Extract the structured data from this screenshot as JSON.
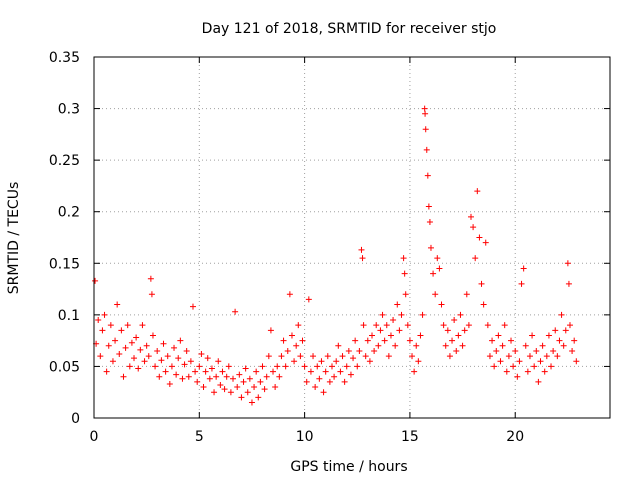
{
  "chart_data": {
    "type": "scatter",
    "title": "Day 121 of 2018, SRMTID for receiver stjo",
    "xlabel": "GPS time / hours",
    "ylabel": "SRMTID / TECUs",
    "xlim": [
      0,
      24.5
    ],
    "ylim": [
      0,
      0.35
    ],
    "x_ticks": [
      0,
      5,
      10,
      15,
      20
    ],
    "x_tick_labels": [
      "0",
      "5",
      "10",
      "15",
      "20"
    ],
    "y_ticks": [
      0,
      0.05,
      0.1,
      0.15,
      0.2,
      0.25,
      0.3,
      0.35
    ],
    "y_tick_labels": [
      "0",
      "0.05",
      "0.1",
      "0.15",
      "0.2",
      "0.25",
      "0.3",
      "0.35"
    ],
    "grid": true,
    "marker": "+",
    "marker_color": "#ff0000",
    "series": [
      {
        "name": "SRMTID",
        "points": [
          [
            0.05,
            0.133
          ],
          [
            0.1,
            0.072
          ],
          [
            0.2,
            0.095
          ],
          [
            0.3,
            0.06
          ],
          [
            0.4,
            0.085
          ],
          [
            0.5,
            0.1
          ],
          [
            0.6,
            0.045
          ],
          [
            0.7,
            0.07
          ],
          [
            0.8,
            0.09
          ],
          [
            0.9,
            0.055
          ],
          [
            1.0,
            0.075
          ],
          [
            1.1,
            0.11
          ],
          [
            1.2,
            0.062
          ],
          [
            1.3,
            0.085
          ],
          [
            1.4,
            0.04
          ],
          [
            1.5,
            0.068
          ],
          [
            1.6,
            0.09
          ],
          [
            1.7,
            0.05
          ],
          [
            1.8,
            0.073
          ],
          [
            1.9,
            0.058
          ],
          [
            2.0,
            0.078
          ],
          [
            2.1,
            0.048
          ],
          [
            2.2,
            0.066
          ],
          [
            2.3,
            0.09
          ],
          [
            2.4,
            0.055
          ],
          [
            2.5,
            0.07
          ],
          [
            2.6,
            0.06
          ],
          [
            2.7,
            0.135
          ],
          [
            2.75,
            0.12
          ],
          [
            2.8,
            0.08
          ],
          [
            2.9,
            0.05
          ],
          [
            3.0,
            0.065
          ],
          [
            3.1,
            0.04
          ],
          [
            3.2,
            0.056
          ],
          [
            3.3,
            0.072
          ],
          [
            3.4,
            0.045
          ],
          [
            3.5,
            0.06
          ],
          [
            3.6,
            0.033
          ],
          [
            3.7,
            0.05
          ],
          [
            3.8,
            0.068
          ],
          [
            3.9,
            0.042
          ],
          [
            4.0,
            0.058
          ],
          [
            4.1,
            0.075
          ],
          [
            4.2,
            0.038
          ],
          [
            4.3,
            0.052
          ],
          [
            4.4,
            0.065
          ],
          [
            4.5,
            0.04
          ],
          [
            4.6,
            0.055
          ],
          [
            4.7,
            0.108
          ],
          [
            4.8,
            0.045
          ],
          [
            4.9,
            0.035
          ],
          [
            5.0,
            0.05
          ],
          [
            5.1,
            0.062
          ],
          [
            5.2,
            0.03
          ],
          [
            5.3,
            0.045
          ],
          [
            5.4,
            0.058
          ],
          [
            5.5,
            0.038
          ],
          [
            5.6,
            0.048
          ],
          [
            5.7,
            0.025
          ],
          [
            5.8,
            0.04
          ],
          [
            5.9,
            0.055
          ],
          [
            6.0,
            0.032
          ],
          [
            6.1,
            0.045
          ],
          [
            6.2,
            0.028
          ],
          [
            6.3,
            0.04
          ],
          [
            6.4,
            0.05
          ],
          [
            6.5,
            0.025
          ],
          [
            6.6,
            0.038
          ],
          [
            6.7,
            0.103
          ],
          [
            6.8,
            0.03
          ],
          [
            6.9,
            0.042
          ],
          [
            7.0,
            0.02
          ],
          [
            7.1,
            0.035
          ],
          [
            7.2,
            0.048
          ],
          [
            7.3,
            0.025
          ],
          [
            7.4,
            0.038
          ],
          [
            7.5,
            0.015
          ],
          [
            7.6,
            0.03
          ],
          [
            7.7,
            0.045
          ],
          [
            7.8,
            0.02
          ],
          [
            7.9,
            0.035
          ],
          [
            8.0,
            0.05
          ],
          [
            8.1,
            0.028
          ],
          [
            8.2,
            0.04
          ],
          [
            8.3,
            0.06
          ],
          [
            8.4,
            0.085
          ],
          [
            8.5,
            0.045
          ],
          [
            8.6,
            0.03
          ],
          [
            8.7,
            0.05
          ],
          [
            8.8,
            0.04
          ],
          [
            8.9,
            0.06
          ],
          [
            9.0,
            0.075
          ],
          [
            9.1,
            0.05
          ],
          [
            9.2,
            0.065
          ],
          [
            9.3,
            0.12
          ],
          [
            9.4,
            0.08
          ],
          [
            9.5,
            0.055
          ],
          [
            9.6,
            0.07
          ],
          [
            9.7,
            0.09
          ],
          [
            9.8,
            0.06
          ],
          [
            9.9,
            0.075
          ],
          [
            10.0,
            0.05
          ],
          [
            10.1,
            0.035
          ],
          [
            10.2,
            0.115
          ],
          [
            10.3,
            0.045
          ],
          [
            10.4,
            0.06
          ],
          [
            10.5,
            0.03
          ],
          [
            10.6,
            0.05
          ],
          [
            10.7,
            0.038
          ],
          [
            10.8,
            0.055
          ],
          [
            10.9,
            0.025
          ],
          [
            11.0,
            0.045
          ],
          [
            11.1,
            0.06
          ],
          [
            11.2,
            0.035
          ],
          [
            11.3,
            0.05
          ],
          [
            11.4,
            0.04
          ],
          [
            11.5,
            0.055
          ],
          [
            11.6,
            0.07
          ],
          [
            11.7,
            0.045
          ],
          [
            11.8,
            0.06
          ],
          [
            11.9,
            0.035
          ],
          [
            12.0,
            0.05
          ],
          [
            12.1,
            0.065
          ],
          [
            12.2,
            0.042
          ],
          [
            12.3,
            0.058
          ],
          [
            12.4,
            0.075
          ],
          [
            12.5,
            0.05
          ],
          [
            12.6,
            0.065
          ],
          [
            12.7,
            0.163
          ],
          [
            12.75,
            0.155
          ],
          [
            12.8,
            0.09
          ],
          [
            12.9,
            0.06
          ],
          [
            13.0,
            0.075
          ],
          [
            13.1,
            0.055
          ],
          [
            13.2,
            0.08
          ],
          [
            13.3,
            0.065
          ],
          [
            13.4,
            0.09
          ],
          [
            13.5,
            0.07
          ],
          [
            13.6,
            0.085
          ],
          [
            13.7,
            0.1
          ],
          [
            13.8,
            0.075
          ],
          [
            13.9,
            0.09
          ],
          [
            14.0,
            0.06
          ],
          [
            14.1,
            0.08
          ],
          [
            14.2,
            0.095
          ],
          [
            14.3,
            0.07
          ],
          [
            14.4,
            0.11
          ],
          [
            14.5,
            0.085
          ],
          [
            14.6,
            0.1
          ],
          [
            14.7,
            0.155
          ],
          [
            14.75,
            0.14
          ],
          [
            14.8,
            0.12
          ],
          [
            14.9,
            0.09
          ],
          [
            15.0,
            0.075
          ],
          [
            15.1,
            0.06
          ],
          [
            15.2,
            0.045
          ],
          [
            15.3,
            0.07
          ],
          [
            15.4,
            0.055
          ],
          [
            15.5,
            0.08
          ],
          [
            15.6,
            0.1
          ],
          [
            15.7,
            0.3
          ],
          [
            15.72,
            0.295
          ],
          [
            15.75,
            0.28
          ],
          [
            15.8,
            0.26
          ],
          [
            15.85,
            0.235
          ],
          [
            15.9,
            0.205
          ],
          [
            15.95,
            0.19
          ],
          [
            16.0,
            0.165
          ],
          [
            16.1,
            0.14
          ],
          [
            16.2,
            0.12
          ],
          [
            16.3,
            0.155
          ],
          [
            16.4,
            0.145
          ],
          [
            16.5,
            0.11
          ],
          [
            16.6,
            0.09
          ],
          [
            16.7,
            0.07
          ],
          [
            16.8,
            0.085
          ],
          [
            16.9,
            0.06
          ],
          [
            17.0,
            0.075
          ],
          [
            17.1,
            0.095
          ],
          [
            17.2,
            0.065
          ],
          [
            17.3,
            0.08
          ],
          [
            17.4,
            0.1
          ],
          [
            17.5,
            0.07
          ],
          [
            17.6,
            0.085
          ],
          [
            17.7,
            0.12
          ],
          [
            17.8,
            0.09
          ],
          [
            17.9,
            0.195
          ],
          [
            18.0,
            0.185
          ],
          [
            18.1,
            0.155
          ],
          [
            18.2,
            0.22
          ],
          [
            18.3,
            0.175
          ],
          [
            18.4,
            0.13
          ],
          [
            18.5,
            0.11
          ],
          [
            18.6,
            0.17
          ],
          [
            18.7,
            0.09
          ],
          [
            18.8,
            0.06
          ],
          [
            18.9,
            0.075
          ],
          [
            19.0,
            0.05
          ],
          [
            19.1,
            0.065
          ],
          [
            19.2,
            0.08
          ],
          [
            19.3,
            0.055
          ],
          [
            19.4,
            0.07
          ],
          [
            19.5,
            0.09
          ],
          [
            19.6,
            0.045
          ],
          [
            19.7,
            0.06
          ],
          [
            19.8,
            0.075
          ],
          [
            19.9,
            0.05
          ],
          [
            20.0,
            0.065
          ],
          [
            20.1,
            0.04
          ],
          [
            20.2,
            0.055
          ],
          [
            20.3,
            0.13
          ],
          [
            20.4,
            0.145
          ],
          [
            20.5,
            0.07
          ],
          [
            20.6,
            0.045
          ],
          [
            20.7,
            0.06
          ],
          [
            20.8,
            0.08
          ],
          [
            20.9,
            0.05
          ],
          [
            21.0,
            0.065
          ],
          [
            21.1,
            0.035
          ],
          [
            21.2,
            0.055
          ],
          [
            21.3,
            0.07
          ],
          [
            21.4,
            0.045
          ],
          [
            21.5,
            0.06
          ],
          [
            21.6,
            0.08
          ],
          [
            21.7,
            0.05
          ],
          [
            21.8,
            0.065
          ],
          [
            21.9,
            0.085
          ],
          [
            22.0,
            0.06
          ],
          [
            22.1,
            0.075
          ],
          [
            22.2,
            0.1
          ],
          [
            22.3,
            0.07
          ],
          [
            22.4,
            0.085
          ],
          [
            22.5,
            0.15
          ],
          [
            22.55,
            0.13
          ],
          [
            22.6,
            0.09
          ],
          [
            22.7,
            0.065
          ],
          [
            22.8,
            0.075
          ],
          [
            22.9,
            0.055
          ]
        ]
      }
    ]
  }
}
